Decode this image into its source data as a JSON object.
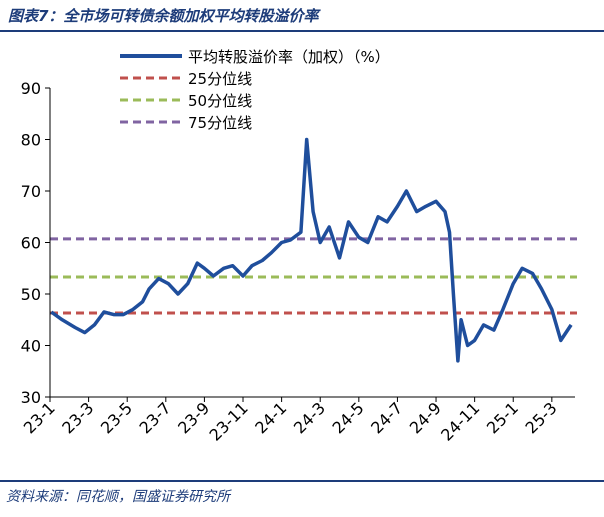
{
  "title": "图表7：全市场可转债余额加权平均转股溢价率",
  "source": "资料来源：同花顺，国盛证券研究所",
  "chart_data": {
    "type": "line",
    "title": "图表7：全市场可转债余额加权平均转股溢价率",
    "xlabel": "",
    "ylabel": "",
    "ylim": [
      30,
      90
    ],
    "yticks": [
      30,
      40,
      50,
      60,
      70,
      80,
      90
    ],
    "xticks": [
      "23-1",
      "23-3",
      "23-5",
      "23-7",
      "23-9",
      "23-11",
      "24-1",
      "24-3",
      "24-5",
      "24-7",
      "24-9",
      "24-11",
      "25-1",
      "25-3"
    ],
    "x_start": "23-1",
    "x_end": "25-4",
    "grid": false,
    "legend_position": "top",
    "series": [
      {
        "name": "平均转股溢价率（加权）（%）",
        "color": "#1f4e9c",
        "x": [
          "23-01-03",
          "23-01-20",
          "23-02-10",
          "23-02-25",
          "23-03-10",
          "23-03-25",
          "23-04-10",
          "23-04-25",
          "23-05-10",
          "23-05-25",
          "23-06-05",
          "23-06-20",
          "23-07-05",
          "23-07-20",
          "23-08-05",
          "23-08-20",
          "23-09-01",
          "23-09-15",
          "23-10-01",
          "23-10-15",
          "23-11-01",
          "23-11-15",
          "23-12-01",
          "23-12-15",
          "24-01-01",
          "24-01-15",
          "24-02-01",
          "24-02-10",
          "24-02-20",
          "24-03-01",
          "24-03-15",
          "24-04-01",
          "24-04-15",
          "24-05-01",
          "24-05-15",
          "24-06-01",
          "24-06-15",
          "24-07-01",
          "24-07-15",
          "24-08-01",
          "24-08-15",
          "24-09-01",
          "24-09-15",
          "24-09-22",
          "24-09-28",
          "24-10-05",
          "24-10-10",
          "24-10-20",
          "24-11-01",
          "24-11-15",
          "24-12-01",
          "24-12-15",
          "25-01-01",
          "25-01-15",
          "25-02-01",
          "25-02-15",
          "25-03-01",
          "25-03-15",
          "25-04-01"
        ],
        "values": [
          46.5,
          45,
          43.5,
          42.5,
          44,
          46.5,
          46,
          46,
          47,
          48.5,
          51,
          53,
          52,
          50,
          52,
          56,
          55,
          53.5,
          55,
          55.5,
          53.5,
          55.5,
          56.5,
          58,
          60,
          60.5,
          62,
          80,
          66,
          60,
          63,
          57,
          64,
          61,
          60,
          65,
          64,
          67,
          70,
          66,
          67,
          68,
          66,
          62,
          50,
          37,
          45,
          40,
          41,
          44,
          43,
          47,
          52,
          55,
          54,
          51,
          47,
          41,
          44
        ]
      }
    ],
    "reference_lines": [
      {
        "name": "25分位线",
        "value": 46.3,
        "color": "#c0504d"
      },
      {
        "name": "50分位线",
        "value": 53.3,
        "color": "#9bbb59"
      },
      {
        "name": "75分位线",
        "value": 60.7,
        "color": "#8064a2"
      }
    ]
  }
}
